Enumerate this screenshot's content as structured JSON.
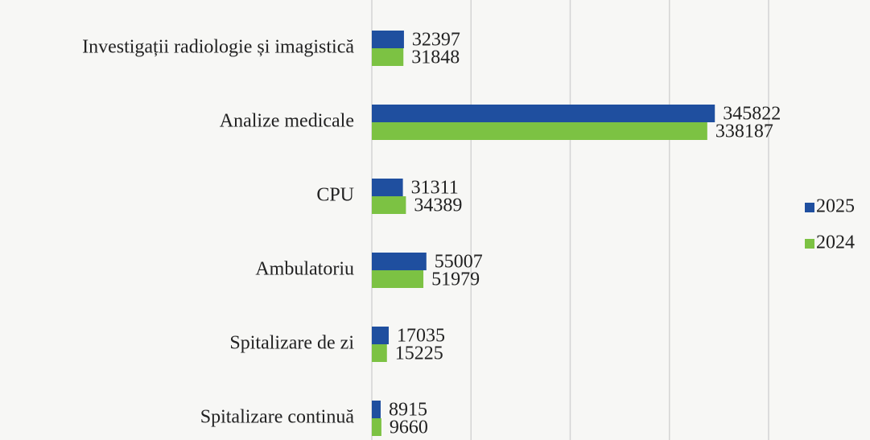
{
  "chart_data": {
    "type": "bar",
    "orientation": "horizontal",
    "categories": [
      "Investigații radiologie și imagistică",
      "Analize medicale",
      "CPU",
      "Ambulatoriu",
      "Spitalizare de zi",
      "Spitalizare continuă"
    ],
    "series": [
      {
        "name": "2025",
        "color": "#1f4f9f",
        "values": [
          32397,
          345822,
          31311,
          55007,
          17035,
          8915
        ]
      },
      {
        "name": "2024",
        "color": "#7cc243",
        "values": [
          31848,
          338187,
          34389,
          51979,
          15225,
          9660
        ]
      }
    ],
    "xlim": [
      0,
      400000
    ],
    "xticks": [
      0,
      100000,
      200000,
      300000,
      400000
    ],
    "grid": true,
    "legend": "right"
  }
}
